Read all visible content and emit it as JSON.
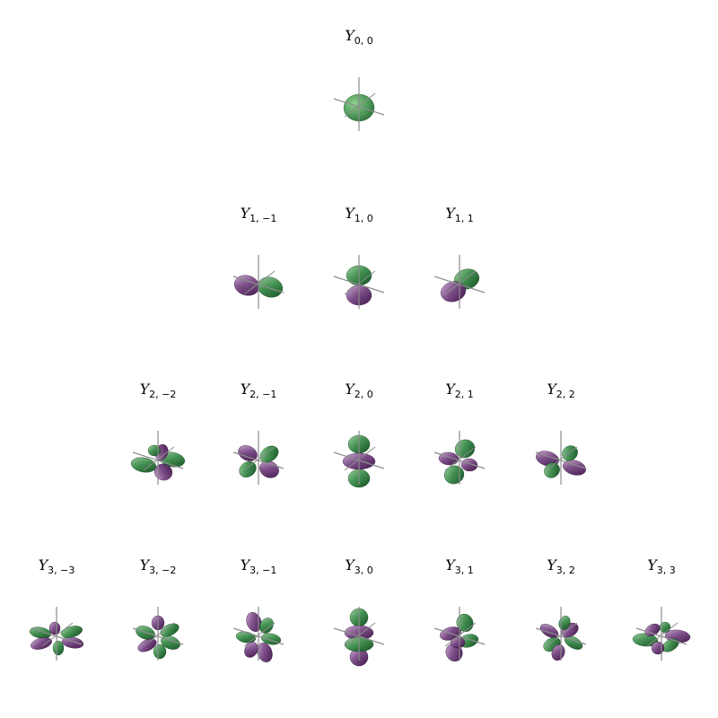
{
  "figure": {
    "colors": {
      "positive": "#1f6b2e",
      "negative": "#4b1d55",
      "axis": "#8c8c8c"
    },
    "rows": [
      {
        "l": 0,
        "cells": [
          {
            "l": 0,
            "m": 0,
            "symbol": "Y",
            "subscript": "0, 0"
          }
        ]
      },
      {
        "l": 1,
        "cells": [
          {
            "l": 1,
            "m": -1,
            "symbol": "Y",
            "subscript": "1, −1"
          },
          {
            "l": 1,
            "m": 0,
            "symbol": "Y",
            "subscript": "1, 0"
          },
          {
            "l": 1,
            "m": 1,
            "symbol": "Y",
            "subscript": "1, 1"
          }
        ]
      },
      {
        "l": 2,
        "cells": [
          {
            "l": 2,
            "m": -2,
            "symbol": "Y",
            "subscript": "2, −2"
          },
          {
            "l": 2,
            "m": -1,
            "symbol": "Y",
            "subscript": "2, −1"
          },
          {
            "l": 2,
            "m": 0,
            "symbol": "Y",
            "subscript": "2, 0"
          },
          {
            "l": 2,
            "m": 1,
            "symbol": "Y",
            "subscript": "2, 1"
          },
          {
            "l": 2,
            "m": 2,
            "symbol": "Y",
            "subscript": "2, 2"
          }
        ]
      },
      {
        "l": 3,
        "cells": [
          {
            "l": 3,
            "m": -3,
            "symbol": "Y",
            "subscript": "3, −3"
          },
          {
            "l": 3,
            "m": -2,
            "symbol": "Y",
            "subscript": "3, −2"
          },
          {
            "l": 3,
            "m": -1,
            "symbol": "Y",
            "subscript": "3, −1"
          },
          {
            "l": 3,
            "m": 0,
            "symbol": "Y",
            "subscript": "3, 0"
          },
          {
            "l": 3,
            "m": 1,
            "symbol": "Y",
            "subscript": "3, 1"
          },
          {
            "l": 3,
            "m": 2,
            "symbol": "Y",
            "subscript": "3, 2"
          },
          {
            "l": 3,
            "m": 3,
            "symbol": "Y",
            "subscript": "3, 3"
          }
        ]
      }
    ]
  }
}
